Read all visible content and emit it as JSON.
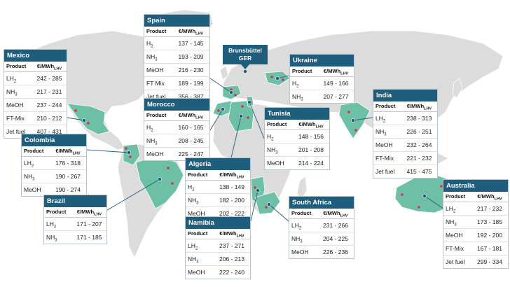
{
  "map": {
    "product_header": "Product",
    "unit_header": "€/MWh",
    "unit_sub": "LHV",
    "highlight_color": "#6dbfa6",
    "land_color": "#dcdcdc",
    "box_title_color": "#1f5d7d",
    "site_marker_color": "#d8333b"
  },
  "callout": {
    "line1": "Brunsbüttel",
    "line2": "GER"
  },
  "countries": [
    {
      "id": "mexico",
      "name": "Mexico",
      "rows": [
        {
          "base": "LH",
          "sub": "2",
          "value": "242 - 285"
        },
        {
          "base": "NH",
          "sub": "3",
          "value": "217 - 231"
        },
        {
          "base": "MeOH",
          "sub": "",
          "value": "237 - 244"
        },
        {
          "base": "FT-Mix",
          "sub": "",
          "value": "210 - 212"
        },
        {
          "base": "Jet fuel",
          "sub": "",
          "value": "407 - 431"
        }
      ]
    },
    {
      "id": "spain",
      "name": "Spain",
      "rows": [
        {
          "base": "H",
          "sub": "2",
          "value": "137 - 145"
        },
        {
          "base": "NH",
          "sub": "3",
          "value": "193 - 209"
        },
        {
          "base": "MeOH",
          "sub": "",
          "value": "216 - 230"
        },
        {
          "base": "FT Mix",
          "sub": "",
          "value": "189 - 199"
        },
        {
          "base": "Jet fuel",
          "sub": "",
          "value": "356 - 387"
        }
      ]
    },
    {
      "id": "morocco",
      "name": "Morocco",
      "rows": [
        {
          "base": "H",
          "sub": "2",
          "value": "160 - 165"
        },
        {
          "base": "NH",
          "sub": "3",
          "value": "208 - 245"
        },
        {
          "base": "MeOH",
          "sub": "",
          "value": "225 - 247"
        }
      ]
    },
    {
      "id": "ukraine",
      "name": "Ukraine",
      "rows": [
        {
          "base": "H",
          "sub": "2",
          "value": "149 - 166"
        },
        {
          "base": "NH",
          "sub": "3",
          "value": "207 - 277"
        }
      ]
    },
    {
      "id": "tunisia",
      "name": "Tunisia",
      "rows": [
        {
          "base": "H",
          "sub": "2",
          "value": "148 - 156"
        },
        {
          "base": "NH",
          "sub": "3",
          "value": "201 - 208"
        },
        {
          "base": "MeOH",
          "sub": "",
          "value": "214 - 224"
        }
      ]
    },
    {
      "id": "india",
      "name": "India",
      "rows": [
        {
          "base": "LH",
          "sub": "2",
          "value": "238 - 313"
        },
        {
          "base": "NH",
          "sub": "3",
          "value": "226 - 251"
        },
        {
          "base": "MeOH",
          "sub": "",
          "value": "232 - 264"
        },
        {
          "base": "FT-Mix",
          "sub": "",
          "value": "221 - 232"
        },
        {
          "base": "Jet fuel",
          "sub": "",
          "value": "415 - 475"
        }
      ]
    },
    {
      "id": "colombia",
      "name": "Colombia",
      "rows": [
        {
          "base": "LH",
          "sub": "2",
          "value": "176 - 318"
        },
        {
          "base": "NH",
          "sub": "3",
          "value": "190 - 267"
        },
        {
          "base": "MeOH",
          "sub": "",
          "value": "190 - 274"
        }
      ]
    },
    {
      "id": "algeria",
      "name": "Algeria",
      "rows": [
        {
          "base": "H",
          "sub": "2",
          "value": "138 - 149"
        },
        {
          "base": "NH",
          "sub": "3",
          "value": "182 - 200"
        },
        {
          "base": "MeOH",
          "sub": "",
          "value": "202 - 222"
        }
      ]
    },
    {
      "id": "brazil",
      "name": "Brazil",
      "rows": [
        {
          "base": "LH",
          "sub": "2",
          "value": "171 - 207"
        },
        {
          "base": "NH",
          "sub": "3",
          "value": "171 - 185"
        }
      ]
    },
    {
      "id": "namibia",
      "name": "Namibia",
      "rows": [
        {
          "base": "LH",
          "sub": "2",
          "value": "237 - 271"
        },
        {
          "base": "NH",
          "sub": "3",
          "value": "206 - 213"
        },
        {
          "base": "MeOH",
          "sub": "",
          "value": "222 - 240"
        }
      ]
    },
    {
      "id": "south-africa",
      "name": "South Africa",
      "rows": [
        {
          "base": "LH",
          "sub": "2",
          "value": "231 - 266"
        },
        {
          "base": "NH",
          "sub": "3",
          "value": "204 - 225"
        },
        {
          "base": "MeOH",
          "sub": "",
          "value": "226 - 236"
        }
      ]
    },
    {
      "id": "australia",
      "name": "Australia",
      "rows": [
        {
          "base": "LH",
          "sub": "2",
          "value": "217 - 232"
        },
        {
          "base": "NH",
          "sub": "3",
          "value": "173 - 185"
        },
        {
          "base": "MeOH",
          "sub": "",
          "value": "192 - 200"
        },
        {
          "base": "FT-Mix",
          "sub": "",
          "value": "167 - 181"
        },
        {
          "base": "Jet fuel",
          "sub": "",
          "value": "299 - 334"
        }
      ]
    }
  ]
}
